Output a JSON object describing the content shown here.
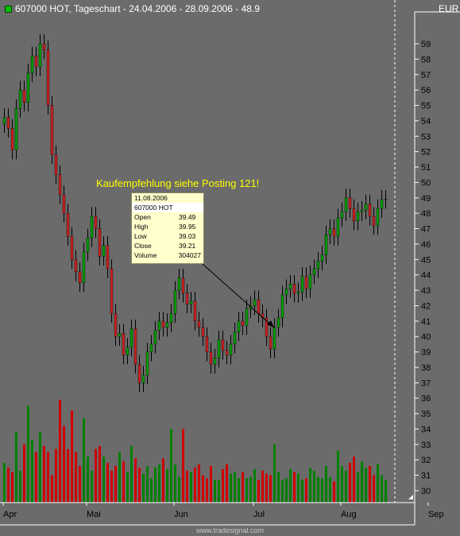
{
  "header": {
    "title": "607000  HOT, Tageschart - 24.04.2006 - 28.09.2006 - 48.9"
  },
  "currency": "EUR",
  "annotation": "Kaufempfehlung siehe Posting 121!",
  "tooltip": {
    "date": "11.08.2006",
    "symbol": "607000  HOT",
    "rows": [
      {
        "label": "Open",
        "value": "39.49"
      },
      {
        "label": "High",
        "value": "39.95"
      },
      {
        "label": "Low",
        "value": "39.03"
      },
      {
        "label": "Close",
        "value": "39.21"
      },
      {
        "label": "Volume",
        "value": "304027"
      }
    ]
  },
  "footer": "www.tradesignal.com",
  "colors": {
    "background": "#6b6b6b",
    "up": "#00a000",
    "down": "#d02020",
    "volume_up": "#008000",
    "volume_down": "#d00000"
  },
  "chart_data": {
    "type": "candlestick",
    "title": "607000  HOT, Tageschart - 24.04.2006 - 28.09.2006 - 48.9",
    "y_axis_ticks": [
      59,
      58,
      57,
      56,
      55,
      54,
      53,
      52,
      51,
      50,
      49,
      48,
      47,
      46,
      45,
      44,
      43,
      42,
      41,
      40,
      39,
      38,
      37,
      36,
      35,
      34,
      33,
      32,
      31,
      30
    ],
    "ylim": [
      29.5,
      60
    ],
    "x_ticks": [
      "Apr",
      "Mai",
      "Jun",
      "Jul",
      "Aug",
      "Sep"
    ],
    "x_tick_index": [
      0,
      21,
      43,
      63,
      85,
      107
    ],
    "close": [
      54.2,
      53.5,
      52.1,
      54.8,
      56.0,
      55.2,
      57.1,
      58.2,
      57.5,
      59.0,
      58.6,
      55.0,
      51.8,
      50.5,
      49.2,
      48.0,
      46.5,
      45.0,
      44.2,
      43.5,
      45.5,
      46.4,
      47.8,
      47.0,
      45.2,
      45.9,
      44.4,
      41.5,
      40.0,
      40.2,
      38.8,
      39.3,
      40.5,
      38.2,
      37.0,
      37.5,
      39.0,
      39.5,
      40.4,
      41.0,
      40.6,
      40.9,
      41.5,
      43.0,
      43.8,
      42.8,
      42.1,
      42.3,
      41.0,
      40.6,
      40.0,
      39.0,
      38.2,
      38.6,
      39.8,
      39.1,
      38.8,
      39.5,
      40.3,
      41.0,
      40.7,
      41.8,
      42.0,
      42.4,
      41.5,
      41.2,
      40.0,
      39.2,
      40.6,
      41.2,
      42.7,
      43.1,
      43.4,
      42.8,
      42.9,
      43.9,
      43.1,
      44.0,
      44.4,
      44.9,
      45.3,
      46.6,
      47.0,
      46.5,
      47.7,
      48.1,
      49.0,
      48.3,
      47.5,
      48.1,
      48.2,
      48.6,
      47.8,
      47.2,
      48.3,
      48.9,
      48.9
    ],
    "volume": [
      31.8,
      31.5,
      31.2,
      33.8,
      31.3,
      33.0,
      35.5,
      33.3,
      32.5,
      33.8,
      32.9,
      32.5,
      31.0,
      32.7,
      35.9,
      34.2,
      32.7,
      35.2,
      32.5,
      31.6,
      34.7,
      32.2,
      31.3,
      32.7,
      32.9,
      32.2,
      31.8,
      31.3,
      31.6,
      32.5,
      31.9,
      31.2,
      32.9,
      32.1,
      31.5,
      31.1,
      31.6,
      30.8,
      31.5,
      31.7,
      32.1,
      31.4,
      34.0,
      31.7,
      30.9,
      34.0,
      31.3,
      31.2,
      31.5,
      31.7,
      31.0,
      30.8,
      31.6,
      30.7,
      30.7,
      31.4,
      31.7,
      31.1,
      31.2,
      30.8,
      31.2,
      30.8,
      30.9,
      31.4,
      30.7,
      31.3,
      31.1,
      31.0,
      33.0,
      31.2,
      30.7,
      30.8,
      31.4,
      31.2,
      31.1,
      30.7,
      30.8,
      31.5,
      31.3,
      30.9,
      30.8,
      31.6,
      30.9,
      30.6,
      32.6,
      31.6,
      31.3,
      31.8,
      32.2,
      31.2,
      31.9,
      31.5,
      31.6,
      31.0,
      31.7,
      31.0,
      30.7
    ]
  }
}
